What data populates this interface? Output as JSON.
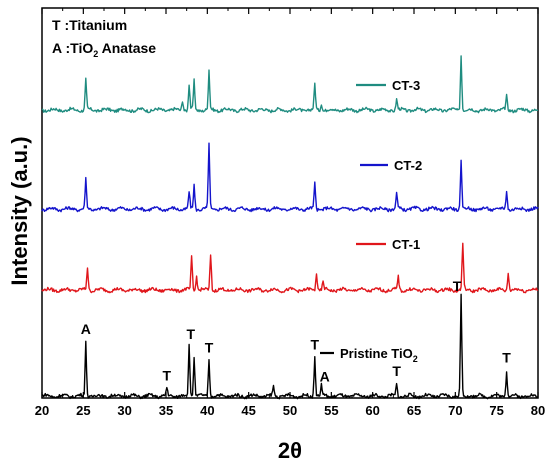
{
  "chart_data": {
    "type": "line",
    "xlabel": "2θ",
    "ylabel": "Intensity (a.u.)",
    "xlim": [
      20,
      80
    ],
    "xticks": [
      "20",
      "25",
      "30",
      "35",
      "40",
      "45",
      "50",
      "55",
      "60",
      "65",
      "70",
      "75",
      "80"
    ],
    "annotations": {
      "titanium": "T :Titanium",
      "anatase_prefix": "A :TiO",
      "anatase_sub": "2",
      "anatase_suffix": " Anatase"
    },
    "series": [
      {
        "name": "CT-3",
        "name_parts": [
          "CT-3",
          "",
          ""
        ],
        "color": "#1f8c80",
        "peaks": [
          {
            "x": 25.3,
            "h": 1.0
          },
          {
            "x": 37.0,
            "h": 0.35
          },
          {
            "x": 37.8,
            "h": 0.85
          },
          {
            "x": 38.4,
            "h": 0.95
          },
          {
            "x": 40.2,
            "h": 1.3
          },
          {
            "x": 53.0,
            "h": 0.85
          },
          {
            "x": 53.8,
            "h": 0.25
          },
          {
            "x": 62.9,
            "h": 0.35
          },
          {
            "x": 70.7,
            "h": 1.85
          },
          {
            "x": 76.2,
            "h": 0.45
          }
        ]
      },
      {
        "name": "CT-2",
        "name_parts": [
          "CT-2",
          "",
          ""
        ],
        "color": "#1414cc",
        "peaks": [
          {
            "x": 25.3,
            "h": 1.0
          },
          {
            "x": 37.8,
            "h": 0.55
          },
          {
            "x": 38.4,
            "h": 0.8
          },
          {
            "x": 40.2,
            "h": 2.2
          },
          {
            "x": 53.0,
            "h": 0.85
          },
          {
            "x": 62.9,
            "h": 0.5
          },
          {
            "x": 70.7,
            "h": 1.6
          },
          {
            "x": 76.2,
            "h": 0.6
          }
        ]
      },
      {
        "name": "CT-1",
        "name_parts": [
          "CT-1",
          "",
          ""
        ],
        "color": "#e0161b",
        "peaks": [
          {
            "x": 25.5,
            "h": 0.75
          },
          {
            "x": 38.1,
            "h": 1.1
          },
          {
            "x": 38.7,
            "h": 0.5
          },
          {
            "x": 40.4,
            "h": 1.2
          },
          {
            "x": 53.2,
            "h": 0.6
          },
          {
            "x": 54.0,
            "h": 0.25
          },
          {
            "x": 63.1,
            "h": 0.45
          },
          {
            "x": 70.9,
            "h": 1.55
          },
          {
            "x": 76.4,
            "h": 0.6
          }
        ]
      },
      {
        "name": "Pristine TiO2",
        "name_parts": [
          "Pristine TiO",
          "2",
          ""
        ],
        "color": "#000000",
        "peaks": [
          {
            "x": 25.3,
            "h": 1.8
          },
          {
            "x": 35.1,
            "h": 0.25
          },
          {
            "x": 37.8,
            "h": 1.7
          },
          {
            "x": 38.4,
            "h": 1.35
          },
          {
            "x": 40.2,
            "h": 1.25
          },
          {
            "x": 48.0,
            "h": 0.3
          },
          {
            "x": 53.0,
            "h": 1.35
          },
          {
            "x": 53.8,
            "h": 0.35
          },
          {
            "x": 62.9,
            "h": 0.4
          },
          {
            "x": 70.7,
            "h": 3.3
          },
          {
            "x": 76.2,
            "h": 0.85
          }
        ]
      }
    ],
    "peak_labels": [
      {
        "text": "A",
        "x": 25.3
      },
      {
        "text": "T",
        "x": 35.1
      },
      {
        "text": "T",
        "x": 38.0
      },
      {
        "text": "T",
        "x": 40.2
      },
      {
        "text": "T",
        "x": 53.0
      },
      {
        "text": "A",
        "x": 54.2
      },
      {
        "text": "T",
        "x": 62.9
      },
      {
        "text": "T",
        "x": 70.2
      },
      {
        "text": "T",
        "x": 76.2
      }
    ]
  }
}
